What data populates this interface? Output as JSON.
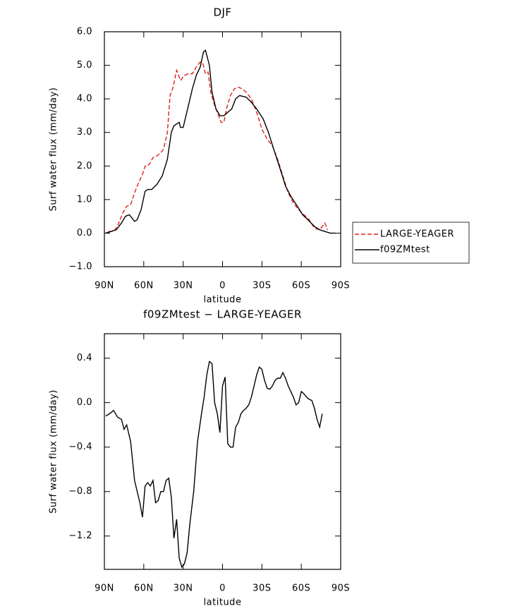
{
  "chart_data": [
    {
      "type": "line",
      "title": "DJF",
      "xlabel": "latitude",
      "ylabel": "Surf water flux (mm/day)",
      "xlim": [
        90,
        -90
      ],
      "ylim": [
        -1,
        6
      ],
      "xticks": [
        {
          "value": 90,
          "label": "90N"
        },
        {
          "value": 60,
          "label": "60N"
        },
        {
          "value": 30,
          "label": "30N"
        },
        0,
        {
          "value": -30,
          "label": "30S"
        },
        {
          "value": -60,
          "label": "60S"
        },
        {
          "value": -90,
          "label": "90S"
        }
      ],
      "yticks": [
        {
          "value": 6,
          "label": "6.0"
        },
        {
          "value": 5,
          "label": "5.0"
        },
        {
          "value": 4,
          "label": "4.0"
        },
        {
          "value": 3,
          "label": "3.0"
        },
        {
          "value": 2,
          "label": "2.0"
        },
        {
          "value": 1,
          "label": "1.0"
        },
        {
          "value": 0,
          "label": "0.0"
        },
        {
          "value": -1,
          "label": "−1.0"
        }
      ],
      "legend": "right",
      "series": [
        {
          "name": "LARGE-YEAGER",
          "color": "#e0201b",
          "dash": true,
          "x": [
            87,
            83,
            80,
            76,
            73,
            70,
            67,
            64,
            61,
            59,
            57,
            55,
            53,
            50,
            47,
            45,
            42,
            40,
            38,
            35,
            32,
            29,
            26,
            23,
            20,
            17,
            15,
            13,
            11,
            9,
            6,
            3,
            1,
            -1,
            -3,
            -6,
            -9,
            -12,
            -15,
            -18,
            -22,
            -26,
            -30,
            -34,
            -38,
            -42,
            -46,
            -50,
            -54,
            -58,
            -62,
            -66,
            -70,
            -74,
            -76,
            -78,
            -80
          ],
          "values": [
            0.05,
            0.05,
            0.2,
            0.6,
            0.8,
            0.85,
            1.2,
            1.5,
            1.75,
            2.0,
            2.0,
            2.1,
            2.25,
            2.3,
            2.4,
            2.5,
            3.0,
            4.1,
            4.3,
            4.85,
            4.55,
            4.7,
            4.75,
            4.75,
            4.95,
            5.1,
            5.05,
            4.75,
            4.8,
            4.2,
            3.8,
            3.5,
            3.3,
            3.3,
            3.7,
            4.1,
            4.3,
            4.35,
            4.3,
            4.2,
            4.0,
            3.6,
            3.1,
            2.8,
            2.6,
            2.2,
            1.7,
            1.2,
            0.9,
            0.7,
            0.55,
            0.4,
            0.15,
            0.1,
            0.2,
            0.3,
            0.1
          ]
        },
        {
          "name": "f09ZMtest",
          "color": "#000000",
          "dash": false,
          "x": [
            89,
            81,
            77,
            74,
            71,
            67,
            65,
            62,
            59,
            57,
            54,
            50,
            46,
            42,
            39,
            37,
            33,
            32,
            30,
            26,
            23,
            20,
            17,
            14.5,
            13,
            10,
            8,
            5,
            2,
            -1,
            -4,
            -7,
            -10,
            -13,
            -18,
            -22,
            -26,
            -31,
            -35,
            -39,
            -44,
            -48,
            -52,
            -57,
            -61,
            -65,
            -70,
            -74,
            -78,
            -82,
            -86
          ],
          "values": [
            0.0,
            0.1,
            0.3,
            0.5,
            0.55,
            0.35,
            0.4,
            0.7,
            1.25,
            1.3,
            1.3,
            1.45,
            1.7,
            2.2,
            3.0,
            3.2,
            3.3,
            3.15,
            3.15,
            3.8,
            4.3,
            4.7,
            4.95,
            5.4,
            5.45,
            5.0,
            4.2,
            3.7,
            3.5,
            3.5,
            3.6,
            3.7,
            4.0,
            4.1,
            4.05,
            3.9,
            3.7,
            3.4,
            3.0,
            2.5,
            1.9,
            1.4,
            1.1,
            0.8,
            0.55,
            0.4,
            0.2,
            0.1,
            0.05,
            0.0,
            0.0
          ]
        }
      ]
    },
    {
      "type": "line",
      "title": "f09ZMtest − LARGE-YEAGER",
      "xlabel": "latitude",
      "ylabel": "Surf water flux (mm/day)",
      "xlim": [
        90,
        -90
      ],
      "ylim": [
        -1.5,
        0.62
      ],
      "xticks": [
        {
          "value": 90,
          "label": "90N"
        },
        {
          "value": 60,
          "label": "60N"
        },
        {
          "value": 30,
          "label": "30N"
        },
        0,
        {
          "value": -30,
          "label": "30S"
        },
        {
          "value": -60,
          "label": "60S"
        },
        {
          "value": -90,
          "label": "90S"
        }
      ],
      "yticks": [
        0.4,
        {
          "value": 0,
          "label": "0.0"
        },
        {
          "value": -0.4,
          "label": "−0.4"
        },
        {
          "value": -0.8,
          "label": "−0.8"
        },
        {
          "value": -1.2,
          "label": "−1.2"
        }
      ],
      "series": [
        {
          "color": "#000000",
          "dash": false,
          "x": [
            89,
            86,
            83,
            80,
            77,
            75,
            73,
            70,
            67,
            63,
            61,
            59,
            57,
            55,
            53,
            51,
            49,
            47,
            45,
            43,
            41,
            39,
            37,
            35,
            33,
            31,
            29,
            27,
            25,
            22,
            19,
            16,
            14,
            12,
            10,
            8,
            6,
            4,
            2,
            0,
            -2,
            -4,
            -6,
            -8,
            -10,
            -12,
            -14,
            -16,
            -18,
            -20,
            -22,
            -24,
            -26,
            -28,
            -30,
            -32,
            -34,
            -36,
            -38,
            -40,
            -42,
            -44,
            -46,
            -48,
            -50,
            -52,
            -54,
            -56,
            -58,
            -60,
            -62,
            -64,
            -66,
            -68,
            -70,
            -72,
            -74,
            -76
          ],
          "values": [
            -0.12,
            -0.1,
            -0.07,
            -0.13,
            -0.15,
            -0.24,
            -0.2,
            -0.35,
            -0.7,
            -0.9,
            -1.03,
            -0.75,
            -0.72,
            -0.75,
            -0.7,
            -0.9,
            -0.88,
            -0.8,
            -0.8,
            -0.7,
            -0.68,
            -0.85,
            -1.22,
            -1.05,
            -1.4,
            -1.48,
            -1.45,
            -1.35,
            -1.1,
            -0.8,
            -0.35,
            -0.1,
            0.05,
            0.25,
            0.37,
            0.35,
            0.0,
            -0.1,
            -0.27,
            0.15,
            0.23,
            -0.37,
            -0.4,
            -0.4,
            -0.22,
            -0.18,
            -0.1,
            -0.07,
            -0.05,
            -0.02,
            0.05,
            0.15,
            0.25,
            0.32,
            0.3,
            0.2,
            0.13,
            0.12,
            0.15,
            0.2,
            0.22,
            0.22,
            0.27,
            0.22,
            0.15,
            0.1,
            0.05,
            -0.02,
            0.0,
            0.1,
            0.08,
            0.05,
            0.03,
            0.02,
            -0.05,
            -0.15,
            -0.22,
            -0.1
          ]
        }
      ]
    }
  ]
}
